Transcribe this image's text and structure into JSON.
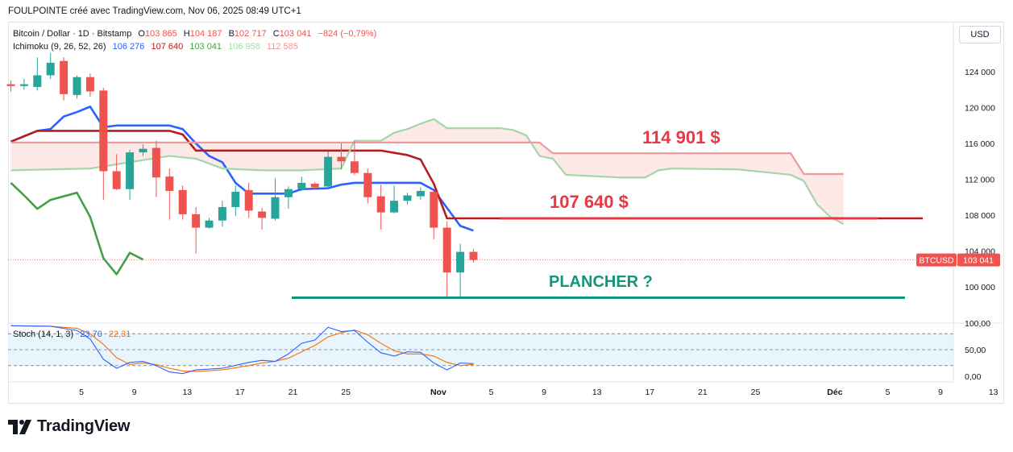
{
  "header": {
    "text": "FOULPOINTE créé avec TradingView.com, Nov 06, 2025 08:49 UTC+1"
  },
  "legend": {
    "symbol": "Bitcoin / Dollar · 1D · Bitstamp",
    "o_label": "O",
    "o_value": "103 865",
    "h_label": "H",
    "h_value": "104 187",
    "l_label": "B",
    "l_value": "102 717",
    "c_label": "C",
    "c_value": "103 041",
    "change": "−824 (−0,79%)",
    "ichimoku_name": "Ichimoku (9, 26, 52, 26)",
    "ichimoku_values": [
      "106 276",
      "107 640",
      "103 041",
      "106 958",
      "112 585"
    ],
    "ichimoku_colors": [
      "#2962ff",
      "#b71c1c",
      "#43a047",
      "#a5d6a7",
      "#ef9a9a"
    ]
  },
  "stoch_legend": {
    "name": "Stoch (14, 1, 3)",
    "k": "23,70",
    "d": "22,31"
  },
  "currency_button": "USD",
  "price_badge": {
    "symbol": "BTCUSD",
    "value": "103 041"
  },
  "annotations": {
    "level1": "114 901 $",
    "level2": "107 640 $",
    "floor": "PLANCHER ?"
  },
  "brand": "TradingView",
  "colors": {
    "up": "#26a69a",
    "down": "#ef5350",
    "annotation_red": "#e53945",
    "annotation_green": "#12957a"
  },
  "chart_data": {
    "type": "candlestick",
    "ylim": [
      97000,
      127500
    ],
    "y_ticks": [
      "124 000",
      "120 000",
      "116 000",
      "112 000",
      "108 000",
      "104 000",
      "100 000"
    ],
    "y_tick_values": [
      124000,
      120000,
      116000,
      112000,
      108000,
      104000,
      100000
    ],
    "x_ticks": [
      "5",
      "9",
      "13",
      "17",
      "21",
      "25",
      "Nov",
      "5",
      "9",
      "13",
      "17",
      "21",
      "25",
      "Déc",
      "5",
      "9",
      "13"
    ],
    "x_tick_days": [
      4,
      8,
      12,
      16,
      20,
      24,
      31,
      35,
      39,
      43,
      47,
      51,
      55,
      61,
      65,
      69,
      73
    ],
    "day_offset_note": "",
    "candles": [
      {
        "d": 0,
        "o": 122600,
        "h": 123000,
        "l": 121800,
        "c": 122400
      },
      {
        "d": 1,
        "o": 122400,
        "h": 123200,
        "l": 122000,
        "c": 122600
      },
      {
        "d": 2,
        "o": 122300,
        "h": 125600,
        "l": 121900,
        "c": 123600
      },
      {
        "d": 3,
        "o": 123600,
        "h": 126100,
        "l": 123200,
        "c": 125000
      },
      {
        "d": 4,
        "o": 125200,
        "h": 125600,
        "l": 120800,
        "c": 121500
      },
      {
        "d": 5,
        "o": 121400,
        "h": 123600,
        "l": 121000,
        "c": 123400
      },
      {
        "d": 6,
        "o": 123400,
        "h": 123800,
        "l": 121200,
        "c": 121800
      },
      {
        "d": 7,
        "o": 121900,
        "h": 122200,
        "l": 109700,
        "c": 112900
      },
      {
        "d": 8,
        "o": 112900,
        "h": 114800,
        "l": 110800,
        "c": 110900
      },
      {
        "d": 9,
        "o": 110900,
        "h": 115300,
        "l": 109700,
        "c": 115000
      },
      {
        "d": 10,
        "o": 115000,
        "h": 115900,
        "l": 114600,
        "c": 115400
      },
      {
        "d": 11,
        "o": 115500,
        "h": 116300,
        "l": 110000,
        "c": 112200
      },
      {
        "d": 12,
        "o": 112300,
        "h": 113200,
        "l": 107500,
        "c": 110700
      },
      {
        "d": 13,
        "o": 110800,
        "h": 111300,
        "l": 107500,
        "c": 108100
      },
      {
        "d": 14,
        "o": 108100,
        "h": 108900,
        "l": 103700,
        "c": 106600
      },
      {
        "d": 15,
        "o": 106600,
        "h": 107700,
        "l": 106500,
        "c": 107400
      },
      {
        "d": 16,
        "o": 107400,
        "h": 109600,
        "l": 106700,
        "c": 108900
      },
      {
        "d": 17,
        "o": 108900,
        "h": 111300,
        "l": 107900,
        "c": 110600
      },
      {
        "d": 18,
        "o": 110800,
        "h": 111600,
        "l": 107700,
        "c": 108500
      },
      {
        "d": 19,
        "o": 108400,
        "h": 108800,
        "l": 106400,
        "c": 107700
      },
      {
        "d": 20,
        "o": 107600,
        "h": 112100,
        "l": 107400,
        "c": 110000
      },
      {
        "d": 21,
        "o": 110000,
        "h": 111200,
        "l": 108700,
        "c": 110900
      },
      {
        "d": 22,
        "o": 110900,
        "h": 112300,
        "l": 110700,
        "c": 111600
      },
      {
        "d": 23,
        "o": 111500,
        "h": 111700,
        "l": 110900,
        "c": 111100
      },
      {
        "d": 24,
        "o": 111200,
        "h": 115100,
        "l": 111000,
        "c": 114500
      },
      {
        "d": 25,
        "o": 114500,
        "h": 116000,
        "l": 113100,
        "c": 114000
      },
      {
        "d": 26,
        "o": 114000,
        "h": 116300,
        "l": 112500,
        "c": 112700
      },
      {
        "d": 27,
        "o": 112700,
        "h": 113200,
        "l": 109300,
        "c": 110000
      },
      {
        "d": 28,
        "o": 110100,
        "h": 111400,
        "l": 106400,
        "c": 108300
      },
      {
        "d": 29,
        "o": 108300,
        "h": 111300,
        "l": 108200,
        "c": 109600
      },
      {
        "d": 30,
        "o": 109600,
        "h": 110500,
        "l": 109200,
        "c": 110200
      },
      {
        "d": 31,
        "o": 110100,
        "h": 111100,
        "l": 109700,
        "c": 110700
      },
      {
        "d": 32,
        "o": 110600,
        "h": 110700,
        "l": 105300,
        "c": 106600
      },
      {
        "d": 33,
        "o": 106600,
        "h": 107300,
        "l": 98900,
        "c": 101600
      },
      {
        "d": 34,
        "o": 101600,
        "h": 104800,
        "l": 98900,
        "c": 103900
      },
      {
        "d": 35,
        "o": 103900,
        "h": 104200,
        "l": 102700,
        "c": 103000
      }
    ],
    "series": [
      {
        "name": "Tenkan",
        "color": "#2962ff",
        "points": [
          [
            0,
            116200
          ],
          [
            2,
            117400
          ],
          [
            3,
            117600
          ],
          [
            4,
            119000
          ],
          [
            5,
            119500
          ],
          [
            6,
            120100
          ],
          [
            7,
            117800
          ],
          [
            8,
            118000
          ],
          [
            12,
            118000
          ],
          [
            13,
            117600
          ],
          [
            14,
            116000
          ],
          [
            15,
            114600
          ],
          [
            16,
            113900
          ],
          [
            17,
            111600
          ],
          [
            18,
            110400
          ],
          [
            21,
            110400
          ],
          [
            22,
            110900
          ],
          [
            24,
            111000
          ],
          [
            25,
            111400
          ],
          [
            26,
            111600
          ],
          [
            31,
            111600
          ],
          [
            32,
            110800
          ],
          [
            34,
            106800
          ],
          [
            35,
            106276
          ]
        ]
      },
      {
        "name": "Kijun",
        "color": "#b71c1c",
        "points": [
          [
            0,
            116200
          ],
          [
            2,
            117400
          ],
          [
            12,
            117400
          ],
          [
            13,
            117000
          ],
          [
            14,
            115200
          ],
          [
            28,
            115200
          ],
          [
            30,
            114700
          ],
          [
            31,
            114200
          ],
          [
            32,
            111500
          ],
          [
            33,
            107640
          ],
          [
            37,
            107640
          ],
          [
            69,
            107640
          ]
        ]
      },
      {
        "name": "Chikou",
        "color": "#43a047",
        "points": [
          [
            0,
            111600
          ],
          [
            1,
            110200
          ],
          [
            2,
            108700
          ],
          [
            3,
            109700
          ],
          [
            5,
            110500
          ],
          [
            6,
            107800
          ],
          [
            7,
            103200
          ],
          [
            8,
            101400
          ],
          [
            9,
            103800
          ],
          [
            10,
            103041
          ]
        ]
      },
      {
        "name": "Senkou A",
        "color": "#a5d6a7",
        "points": [
          [
            0,
            113000
          ],
          [
            6,
            113200
          ],
          [
            12,
            114600
          ],
          [
            14,
            114300
          ],
          [
            16,
            113200
          ],
          [
            19,
            113000
          ],
          [
            22,
            113000
          ],
          [
            25,
            113200
          ],
          [
            26,
            116300
          ],
          [
            28,
            116300
          ],
          [
            29,
            117200
          ],
          [
            30,
            117600
          ],
          [
            31,
            118200
          ],
          [
            32,
            118700
          ],
          [
            33,
            117700
          ],
          [
            37,
            117700
          ],
          [
            38,
            117500
          ],
          [
            39,
            116900
          ],
          [
            40,
            114600
          ],
          [
            41,
            114300
          ],
          [
            42,
            112500
          ],
          [
            46,
            112200
          ],
          [
            48,
            112200
          ],
          [
            49,
            113000
          ],
          [
            50,
            113200
          ],
          [
            55,
            113100
          ],
          [
            59,
            112500
          ],
          [
            60,
            111800
          ],
          [
            61,
            109200
          ],
          [
            62,
            107800
          ],
          [
            63,
            107000
          ]
        ]
      },
      {
        "name": "Senkou B",
        "color": "#ef9a9a",
        "points": [
          [
            0,
            116100
          ],
          [
            40,
            116100
          ],
          [
            41,
            114900
          ],
          [
            59,
            114900
          ],
          [
            60,
            112585
          ],
          [
            63,
            112585
          ]
        ]
      }
    ],
    "stochastic": {
      "ylim": [
        0,
        100
      ],
      "y_ticks": [
        "100,00",
        "50,00",
        "0,00"
      ],
      "y_tick_values": [
        100,
        50,
        0
      ],
      "k": [
        [
          0,
          95
        ],
        [
          3,
          94
        ],
        [
          5,
          86
        ],
        [
          6,
          70
        ],
        [
          7,
          32
        ],
        [
          8,
          15
        ],
        [
          9,
          26
        ],
        [
          10,
          28
        ],
        [
          11,
          20
        ],
        [
          12,
          8
        ],
        [
          13,
          5
        ],
        [
          14,
          12
        ],
        [
          16,
          15
        ],
        [
          18,
          26
        ],
        [
          19,
          30
        ],
        [
          20,
          28
        ],
        [
          21,
          42
        ],
        [
          22,
          62
        ],
        [
          23,
          68
        ],
        [
          24,
          92
        ],
        [
          25,
          84
        ],
        [
          26,
          86
        ],
        [
          27,
          64
        ],
        [
          28,
          44
        ],
        [
          29,
          38
        ],
        [
          30,
          46
        ],
        [
          31,
          45
        ],
        [
          32,
          25
        ],
        [
          33,
          12
        ],
        [
          34,
          25
        ],
        [
          35,
          23.7
        ]
      ],
      "d": [
        [
          0,
          95
        ],
        [
          3,
          94
        ],
        [
          5,
          90
        ],
        [
          6,
          80
        ],
        [
          7,
          60
        ],
        [
          8,
          35
        ],
        [
          9,
          22
        ],
        [
          10,
          25
        ],
        [
          11,
          22
        ],
        [
          12,
          15
        ],
        [
          13,
          10
        ],
        [
          14,
          9
        ],
        [
          16,
          12
        ],
        [
          18,
          20
        ],
        [
          19,
          25
        ],
        [
          20,
          28
        ],
        [
          21,
          34
        ],
        [
          22,
          46
        ],
        [
          23,
          58
        ],
        [
          24,
          74
        ],
        [
          25,
          82
        ],
        [
          26,
          87
        ],
        [
          27,
          78
        ],
        [
          28,
          62
        ],
        [
          29,
          48
        ],
        [
          30,
          42
        ],
        [
          31,
          42
        ],
        [
          32,
          38
        ],
        [
          33,
          26
        ],
        [
          34,
          20
        ],
        [
          35,
          22.31
        ]
      ],
      "bands": [
        80,
        50,
        20
      ]
    }
  }
}
